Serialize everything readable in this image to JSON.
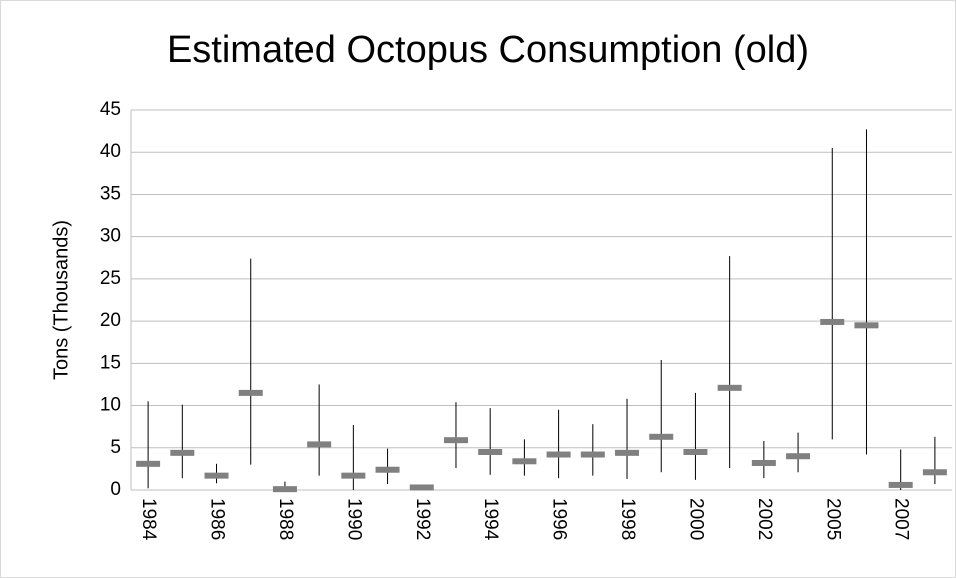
{
  "chart_data": {
    "type": "range",
    "title": "Estimated Octopus Consumption (old)",
    "y_label": "Tons (Thousands)",
    "categories": [
      "1984",
      null,
      "1986",
      null,
      "1988",
      null,
      "1990",
      null,
      "1992",
      null,
      "1994",
      null,
      "1996",
      null,
      "1998",
      null,
      "2000",
      null,
      "2002",
      null,
      "2005",
      null,
      "2007",
      null
    ],
    "series": [
      {
        "color": "#808080",
        "line_color": "#000000",
        "values": [
          3.1,
          4.4,
          1.7,
          11.5,
          0.1,
          5.4,
          1.7,
          2.4,
          0.3,
          5.9,
          4.5,
          3.4,
          4.2,
          4.2,
          4.4,
          6.3,
          4.5,
          12.1,
          3.2,
          4.0,
          19.9,
          19.5,
          0.6,
          2.1
        ],
        "low": [
          0.2,
          1.4,
          0.8,
          3.0,
          0,
          1.7,
          0,
          0.7,
          0.1,
          2.6,
          1.8,
          1.7,
          1.4,
          1.7,
          1.3,
          2.1,
          1.2,
          2.6,
          1.4,
          2.1,
          6.0,
          4.2,
          0,
          0.7
        ],
        "high": [
          10.5,
          10.1,
          3.1,
          27.4,
          1.0,
          12.5,
          7.7,
          4.9,
          0.5,
          10.4,
          9.7,
          6.0,
          9.5,
          7.8,
          10.8,
          15.4,
          11.5,
          27.7,
          5.8,
          6.8,
          40.5,
          42.7,
          4.8,
          6.3
        ]
      }
    ],
    "ylim": [
      0,
      45
    ],
    "yticks": [
      0,
      5,
      10,
      15,
      20,
      25,
      30,
      35,
      40,
      45
    ],
    "grid": true
  }
}
